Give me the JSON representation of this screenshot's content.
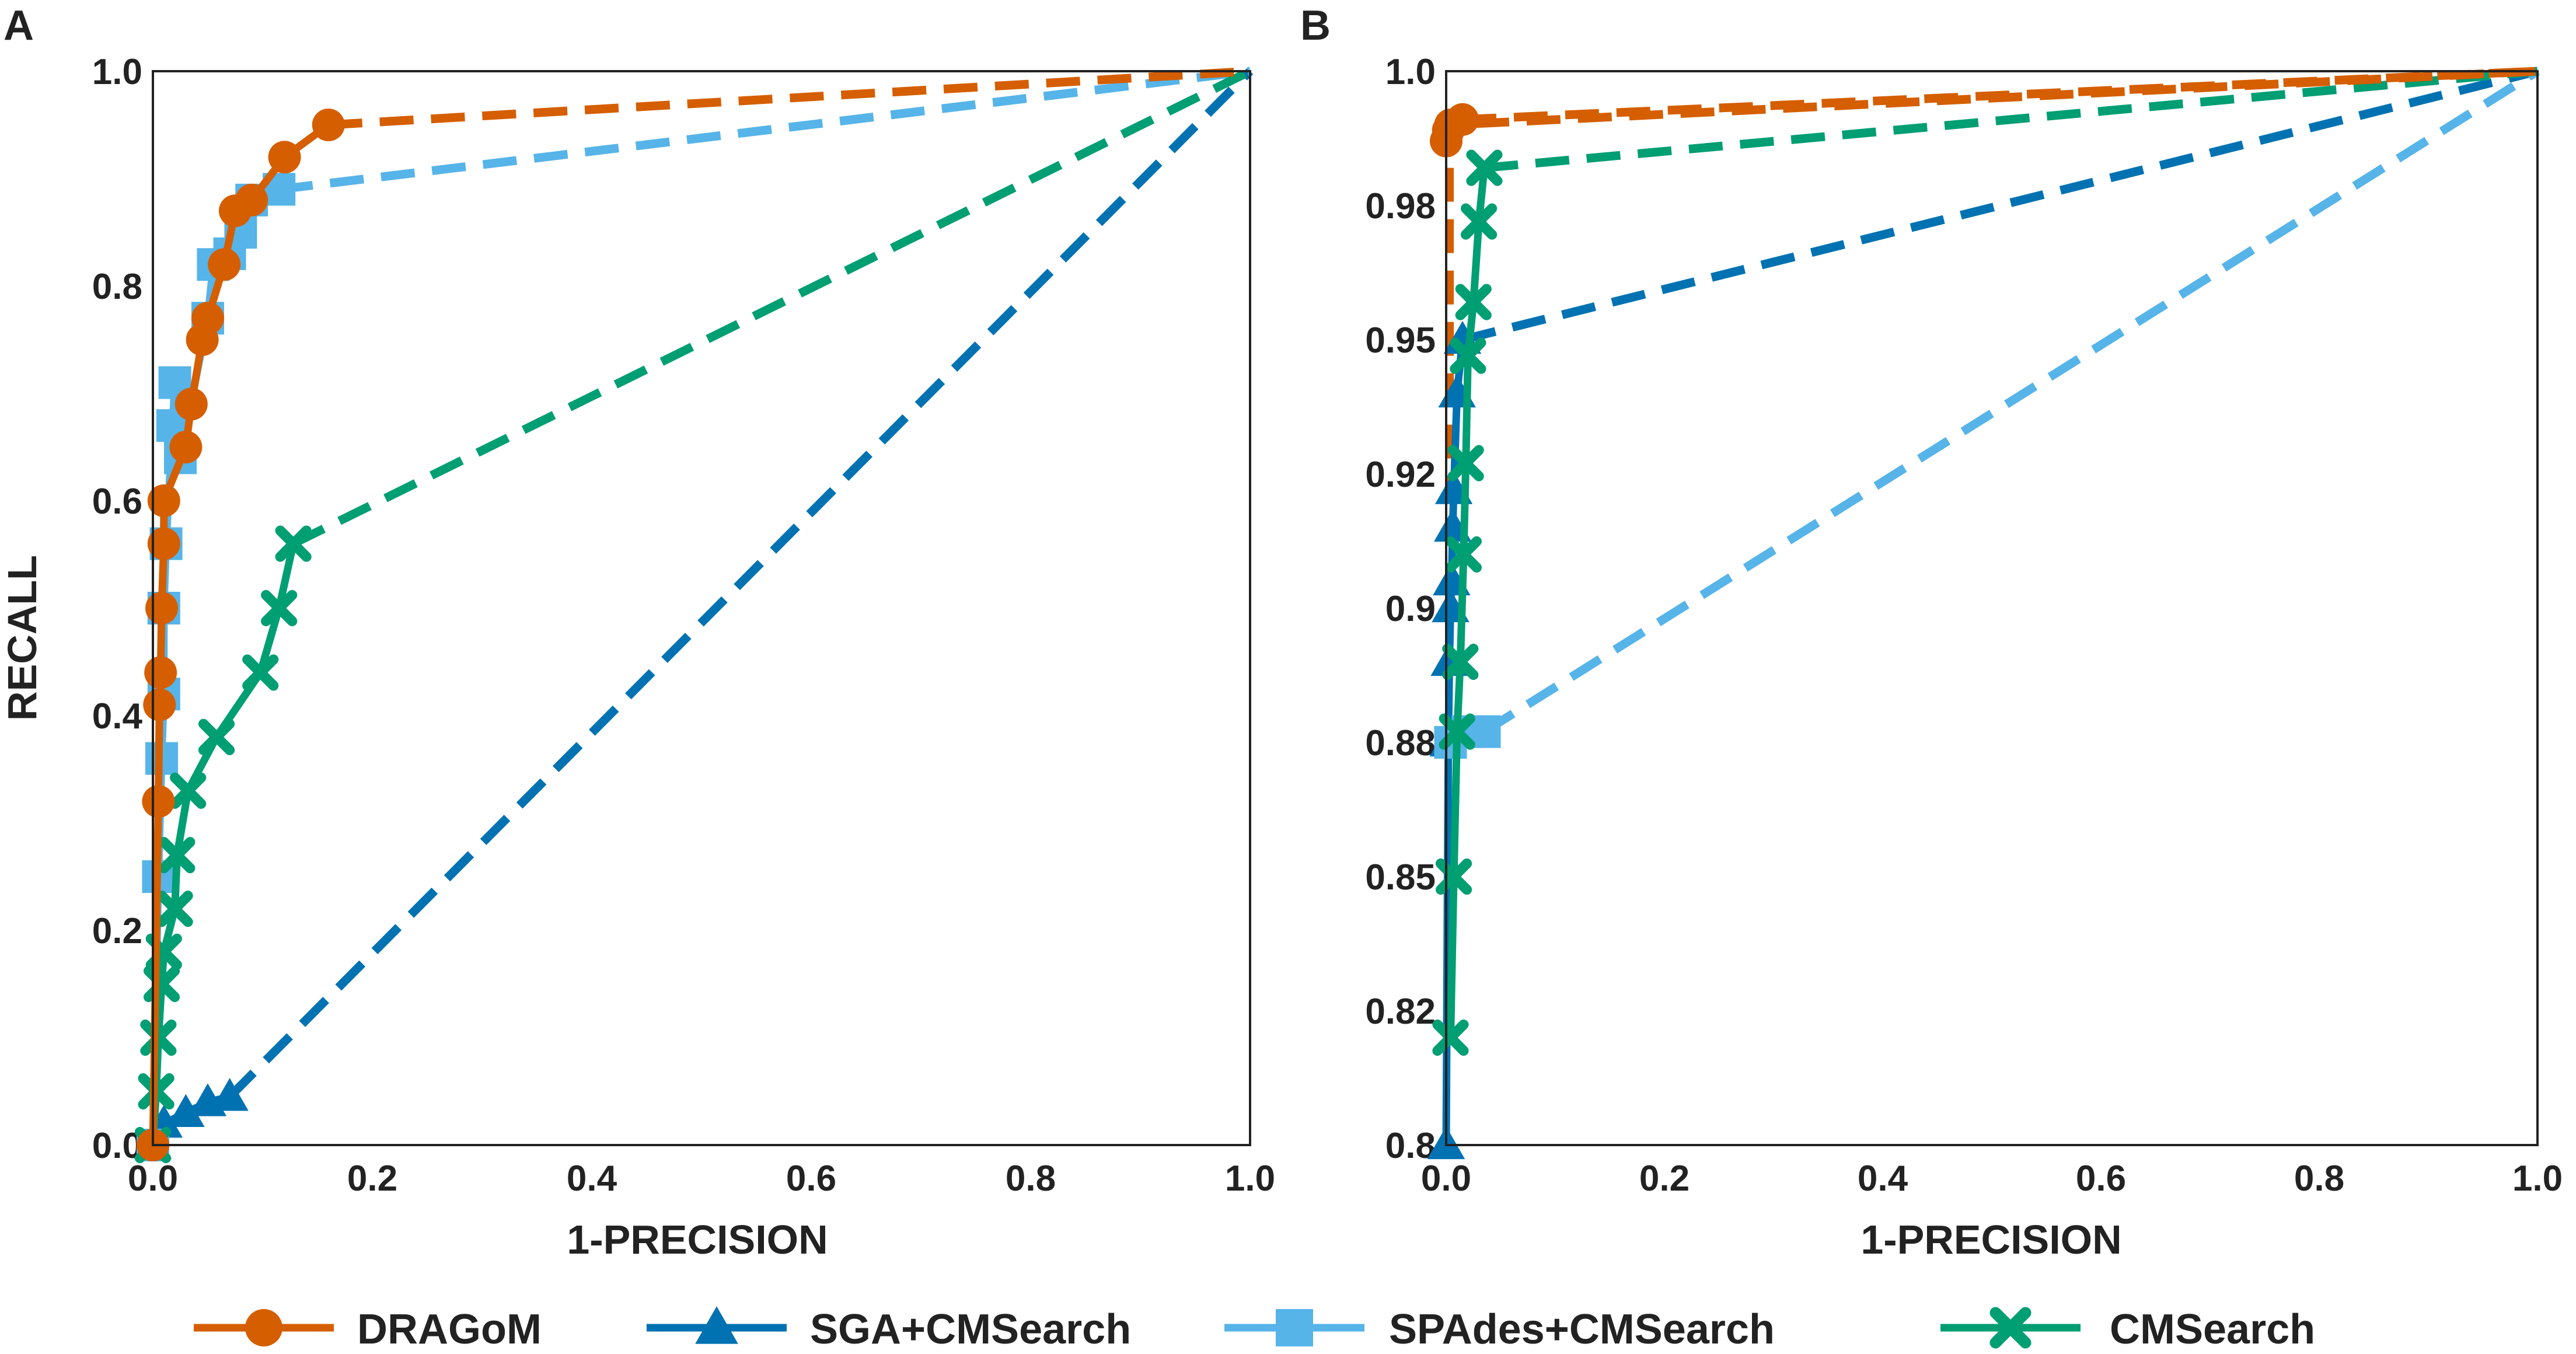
{
  "colors": {
    "DRAGoM": "#D55E00",
    "SGA+CMSearch": "#0072B2",
    "SPAdes+CMSearch": "#56B4E9",
    "CMSearch": "#009E73",
    "frame": "#222222"
  },
  "legend": [
    {
      "label": "DRAGoM",
      "marker": "circle",
      "series": "DRAGoM"
    },
    {
      "label": "SGA+CMSearch",
      "marker": "triangle",
      "series": "SGA+CMSearch"
    },
    {
      "label": "SPAdes+CMSearch",
      "marker": "square",
      "series": "SPAdes+CMSearch"
    },
    {
      "label": "CMSearch",
      "marker": "x",
      "series": "CMSearch"
    }
  ],
  "chart_data": [
    {
      "id": "A",
      "panel_label": "A",
      "type": "line",
      "xlabel": "1-PRECISION",
      "ylabel": "RECALL",
      "xlim": [
        0,
        1
      ],
      "ylim": [
        0,
        1
      ],
      "xticks": [
        0.0,
        0.2,
        0.4,
        0.6,
        0.8,
        1.0
      ],
      "xtick_labels": [
        "0.0",
        "0.2",
        "0.4",
        "0.6",
        "0.8",
        "1.0"
      ],
      "yticks": [
        0.0,
        0.2,
        0.4,
        0.6,
        0.8,
        1.0
      ],
      "ytick_labels": [
        "0.0",
        "0.2",
        "0.4",
        "0.6",
        "0.8",
        "1.0"
      ],
      "series": [
        {
          "name": "DRAGoM",
          "marker": "circle",
          "solid": [
            [
              0.0,
              0.0
            ],
            [
              0.005,
              0.32
            ],
            [
              0.006,
              0.41
            ],
            [
              0.007,
              0.44
            ],
            [
              0.008,
              0.5
            ],
            [
              0.01,
              0.56
            ],
            [
              0.01,
              0.6
            ],
            [
              0.03,
              0.65
            ],
            [
              0.035,
              0.69
            ],
            [
              0.045,
              0.75
            ],
            [
              0.05,
              0.77
            ],
            [
              0.065,
              0.82
            ],
            [
              0.075,
              0.87
            ],
            [
              0.09,
              0.88
            ],
            [
              0.12,
              0.92
            ],
            [
              0.16,
              0.95
            ]
          ],
          "dashed": [
            [
              0.16,
              0.95
            ],
            [
              1.0,
              1.0
            ]
          ]
        },
        {
          "name": "SGA+CMSearch",
          "marker": "triangle",
          "solid": [
            [
              0.0,
              0.0
            ],
            [
              0.01,
              0.02
            ],
            [
              0.03,
              0.03
            ],
            [
              0.05,
              0.04
            ],
            [
              0.07,
              0.045
            ]
          ],
          "dashed": [
            [
              0.07,
              0.045
            ],
            [
              1.0,
              1.0
            ]
          ]
        },
        {
          "name": "SPAdes+CMSearch",
          "marker": "square",
          "solid": [
            [
              0.0,
              0.0
            ],
            [
              0.005,
              0.25
            ],
            [
              0.008,
              0.36
            ],
            [
              0.01,
              0.42
            ],
            [
              0.01,
              0.5
            ],
            [
              0.012,
              0.56
            ],
            [
              0.018,
              0.67
            ],
            [
              0.02,
              0.71
            ],
            [
              0.025,
              0.64
            ],
            [
              0.05,
              0.77
            ],
            [
              0.055,
              0.82
            ],
            [
              0.07,
              0.83
            ],
            [
              0.08,
              0.85
            ],
            [
              0.09,
              0.88
            ],
            [
              0.115,
              0.89
            ]
          ],
          "dashed": [
            [
              0.115,
              0.89
            ],
            [
              1.0,
              1.0
            ]
          ]
        },
        {
          "name": "CMSearch",
          "marker": "x",
          "solid": [
            [
              0.0,
              0.0
            ],
            [
              0.003,
              0.05
            ],
            [
              0.005,
              0.1
            ],
            [
              0.008,
              0.15
            ],
            [
              0.01,
              0.18
            ],
            [
              0.02,
              0.22
            ],
            [
              0.022,
              0.27
            ],
            [
              0.032,
              0.33
            ],
            [
              0.058,
              0.38
            ],
            [
              0.098,
              0.44
            ],
            [
              0.115,
              0.5
            ],
            [
              0.128,
              0.56
            ]
          ],
          "dashed": [
            [
              0.128,
              0.56
            ],
            [
              1.0,
              1.0
            ]
          ]
        }
      ]
    },
    {
      "id": "B",
      "panel_label": "B",
      "type": "line",
      "xlabel": "1-PRECISION",
      "ylabel": "",
      "xlim": [
        0,
        1
      ],
      "ylim": [
        0.8,
        1.0
      ],
      "xticks": [
        0.0,
        0.2,
        0.4,
        0.6,
        0.8,
        1.0
      ],
      "xtick_labels": [
        "0.0",
        "0.2",
        "0.4",
        "0.6",
        "0.8",
        "1.0"
      ],
      "yticks": [
        0.8,
        0.825,
        0.85,
        0.875,
        0.9,
        0.925,
        0.95,
        0.975,
        1.0
      ],
      "ytick_labels": [
        "0.8",
        "0.82",
        "0.85",
        "0.88",
        "0.9",
        "0.92",
        "0.95",
        "0.98",
        "1.0"
      ],
      "series": [
        {
          "name": "DRAGoM",
          "marker": "circle",
          "solid": [
            [
              0.0,
              0.987
            ],
            [
              0.002,
              0.989
            ],
            [
              0.004,
              0.99
            ],
            [
              0.015,
              0.991
            ]
          ],
          "dashed": [
            [
              0.015,
              0.991
            ],
            [
              1.0,
              1.0
            ],
            [
              0.003,
              0.99
            ],
            [
              0.003,
              0.92
            ]
          ]
        },
        {
          "name": "SGA+CMSearch",
          "marker": "triangle",
          "solid": [
            [
              0.0,
              0.8
            ],
            [
              0.002,
              0.875
            ],
            [
              0.003,
              0.89
            ],
            [
              0.004,
              0.9
            ],
            [
              0.005,
              0.905
            ],
            [
              0.006,
              0.915
            ],
            [
              0.007,
              0.922
            ],
            [
              0.01,
              0.94
            ],
            [
              0.015,
              0.95
            ]
          ],
          "dashed": [
            [
              0.015,
              0.95
            ],
            [
              1.0,
              1.0
            ]
          ]
        },
        {
          "name": "SPAdes+CMSearch",
          "marker": "square",
          "solid": [
            [
              0.004,
              0.875
            ],
            [
              0.02,
              0.877
            ],
            [
              0.035,
              0.877
            ]
          ],
          "dashed": [
            [
              0.035,
              0.877
            ],
            [
              1.0,
              1.0
            ]
          ]
        },
        {
          "name": "CMSearch",
          "marker": "x",
          "solid": [
            [
              0.004,
              0.82
            ],
            [
              0.007,
              0.85
            ],
            [
              0.01,
              0.877
            ],
            [
              0.013,
              0.89
            ],
            [
              0.016,
              0.91
            ],
            [
              0.018,
              0.927
            ],
            [
              0.02,
              0.947
            ],
            [
              0.025,
              0.957
            ],
            [
              0.03,
              0.972
            ],
            [
              0.035,
              0.982
            ]
          ],
          "dashed": [
            [
              0.035,
              0.982
            ],
            [
              1.0,
              1.0
            ]
          ]
        }
      ]
    }
  ]
}
